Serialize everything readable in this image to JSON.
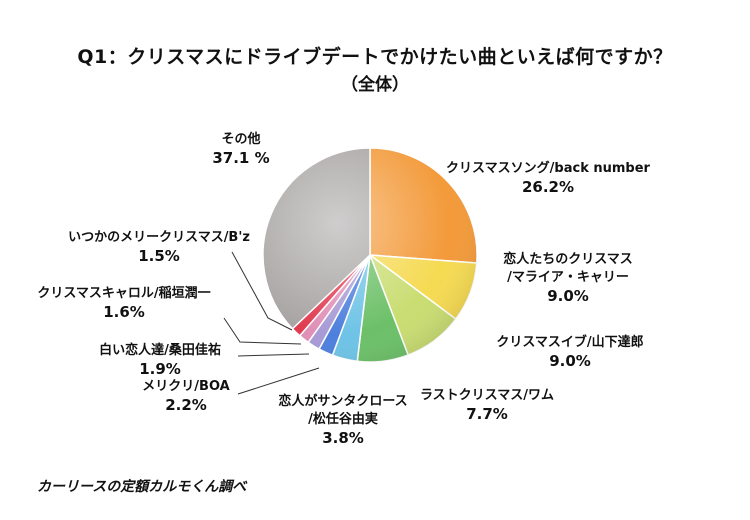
{
  "chart_data": {
    "type": "pie",
    "title": "Q1：クリスマスにドライブデートでかけたい曲といえば何ですか？",
    "subtitle": "（全体）",
    "source": "カーリースの定額カルモくん調べ",
    "slices": [
      {
        "label": [
          "クリスマスソング/back number"
        ],
        "pct_label": "26.2%",
        "value": 26.2,
        "color": "#f39a3a"
      },
      {
        "label": [
          "恋人たちのクリスマス",
          "/マライア・キャリー"
        ],
        "pct_label": "9.0%",
        "value": 9.0,
        "color": "#f5da52"
      },
      {
        "label": [
          "クリスマスイブ/山下達郎"
        ],
        "pct_label": "9.0%",
        "value": 9.0,
        "color": "#c9dd72"
      },
      {
        "label": [
          "ラストクリスマス/ワム"
        ],
        "pct_label": "7.7%",
        "value": 7.7,
        "color": "#6cc068"
      },
      {
        "label": [
          "恋人がサンタクロース",
          "/松任谷由実"
        ],
        "pct_label": "3.8%",
        "value": 3.8,
        "color": "#6ec3e6"
      },
      {
        "label": [
          "メリクリ/BOA"
        ],
        "pct_label": "2.2%",
        "value": 2.2,
        "color": "#4d7fdc"
      },
      {
        "label": [
          "白い恋人達/桑田佳祐"
        ],
        "pct_label": "1.9%",
        "value": 1.9,
        "color": "#a79ad6"
      },
      {
        "label": [
          "クリスマスキャロル/稲垣潤一"
        ],
        "pct_label": "1.6%",
        "value": 1.6,
        "color": "#e08fb6"
      },
      {
        "label": [
          "いつかのメリークリスマス/B'z"
        ],
        "pct_label": "1.5%",
        "value": 1.5,
        "color": "#e03a4f"
      },
      {
        "label": [
          "その他"
        ],
        "pct_label": "37.1 %",
        "value": 37.1,
        "color": "#a8a4a4"
      }
    ]
  }
}
